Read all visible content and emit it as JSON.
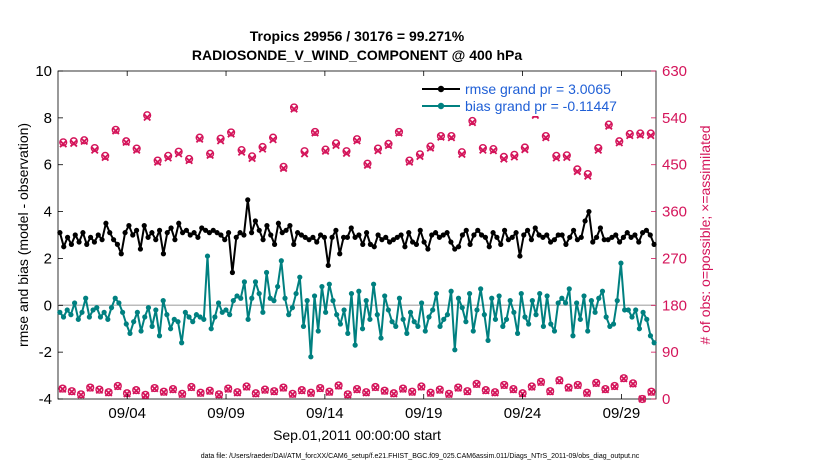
{
  "chart_data": {
    "type": "line",
    "title_line1": "Tropics 29956 / 30176 = 99.271%",
    "title_line2": "RADIOSONDE_V_WIND_COMPONENT @ 400 hPa",
    "xlabel": "Sep.01,2011 00:00:00 start",
    "ylabel_left": "rmse and bias (model - observation)",
    "ylabel_right": "# of obs: o=possible; ×=assimilated",
    "footnote": "data file: /Users/raeder/DAI/ATM_forcXX/CAM6_setup/f.e21.FHIST_BGC.f09_025.CAM6assim.011/Diags_NTrS_2011-09/obs_diag_output.nc",
    "x_range": [
      0.5,
      30.75
    ],
    "y_left_range": [
      -4,
      10
    ],
    "y_right_range": [
      0,
      630
    ],
    "x_ticks": [
      {
        "value": 4,
        "label": "09/04"
      },
      {
        "value": 9,
        "label": "09/09"
      },
      {
        "value": 14,
        "label": "09/14"
      },
      {
        "value": 19,
        "label": "09/19"
      },
      {
        "value": 24,
        "label": "09/24"
      },
      {
        "value": 29,
        "label": "09/29"
      }
    ],
    "y_left_ticks": [
      -4,
      -2,
      0,
      2,
      4,
      6,
      8,
      10
    ],
    "y_right_ticks": [
      0,
      90,
      180,
      270,
      360,
      450,
      540,
      630
    ],
    "colors": {
      "rmse": "#000000",
      "bias": "#008080",
      "obs": "#d4145a",
      "zero_line": "#bbbbbb",
      "legend_text": "#1f5fd6"
    },
    "legend_position": "top-right",
    "series": [
      {
        "name": "rmse grand pr = 3.0065",
        "axis": "left",
        "style": "line-markers",
        "color_key": "rmse",
        "values": [
          3.1,
          2.5,
          2.9,
          2.6,
          3.0,
          2.7,
          3.1,
          2.6,
          2.9,
          2.7,
          3.0,
          2.8,
          3.5,
          3.1,
          2.8,
          2.6,
          2.2,
          3.1,
          3.4,
          3.0,
          3.2,
          2.4,
          3.4,
          2.9,
          3.1,
          2.8,
          3.2,
          2.2,
          3.1,
          3.3,
          2.8,
          3.5,
          3.1,
          3.2,
          3.0,
          3.1,
          2.9,
          3.3,
          3.2,
          3.1,
          3.2,
          3.1,
          3.0,
          2.8,
          3.1,
          1.4,
          2.9,
          3.1,
          3.0,
          4.5,
          3.1,
          3.6,
          3.2,
          2.8,
          3.4,
          3.0,
          2.6,
          3.5,
          3.1,
          3.2,
          3.4,
          2.6,
          3.1,
          3.0,
          2.9,
          2.8,
          2.9,
          2.7,
          3.0,
          2.9,
          1.7,
          2.9,
          3.2,
          2.2,
          2.9,
          2.9,
          3.3,
          2.9,
          3.0,
          2.6,
          3.1,
          2.6,
          2.5,
          3.0,
          2.8,
          2.9,
          2.7,
          2.8,
          2.9,
          3.0,
          2.5,
          3.1,
          2.7,
          2.6,
          3.2,
          2.7,
          2.4,
          3.0,
          3.1,
          2.9,
          3.0,
          3.1,
          2.7,
          2.4,
          2.5,
          3.0,
          3.2,
          2.6,
          3.0,
          3.2,
          3.0,
          2.9,
          2.5,
          3.1,
          2.9,
          2.6,
          3.2,
          2.8,
          2.9,
          3.1,
          2.1,
          3.0,
          3.2,
          2.8,
          3.3,
          3.0,
          2.9,
          3.0,
          2.7,
          2.8,
          3.0,
          3.0,
          2.6,
          2.9,
          3.2,
          2.8,
          2.9,
          3.6,
          4.0,
          2.7,
          2.9,
          3.3,
          2.8,
          2.8,
          2.9,
          3.0,
          2.7,
          2.9,
          3.1,
          2.9,
          3.0,
          2.7,
          3.1,
          3.2,
          3.0,
          2.6
        ]
      },
      {
        "name": "bias grand pr = -0.11447",
        "axis": "left",
        "style": "line-markers",
        "color_key": "bias",
        "values": [
          -0.3,
          -0.5,
          -0.2,
          -0.4,
          0.1,
          -0.6,
          -0.3,
          0.3,
          -0.5,
          -0.2,
          -0.1,
          -0.5,
          -0.3,
          -0.6,
          -0.1,
          0.3,
          0.1,
          -0.3,
          -0.8,
          -1.2,
          -0.7,
          -0.3,
          -1.1,
          -0.5,
          -0.1,
          -0.9,
          -0.2,
          -1.3,
          0.2,
          -0.4,
          -1.0,
          -0.6,
          -0.7,
          -1.6,
          -0.3,
          -0.5,
          -0.7,
          -0.4,
          -0.5,
          -0.6,
          2.1,
          -1.0,
          -0.5,
          0.1,
          -0.3,
          -0.2,
          -0.4,
          0.2,
          0.4,
          0.3,
          1.0,
          -0.6,
          0.3,
          1.0,
          0.5,
          -0.3,
          1.4,
          0.3,
          0.2,
          0.8,
          1.9,
          0.3,
          -0.4,
          -0.1,
          0.5,
          1.2,
          -0.9,
          0.2,
          -2.2,
          0.4,
          -1.1,
          0.8,
          -0.3,
          0.9,
          0.2,
          -0.4,
          -0.8,
          -0.2,
          -1.2,
          0.5,
          -1.7,
          0.6,
          -1.0,
          0.2,
          -0.6,
          0.9,
          -0.4,
          -1.4,
          0.4,
          -0.2,
          -0.7,
          -0.9,
          0.3,
          -0.6,
          -1.2,
          -0.3,
          -0.7,
          -0.9,
          0.1,
          -1.1,
          -0.5,
          -0.2,
          0.5,
          -0.9,
          -0.6,
          -0.4,
          0.6,
          -1.9,
          0.3,
          -0.1,
          -0.7,
          0.5,
          -1.1,
          -0.2,
          0.7,
          -0.4,
          -1.5,
          0.3,
          -0.6,
          0.4,
          -0.9,
          -0.6,
          0.2,
          -0.3,
          -1.2,
          0.5,
          -0.5,
          -0.8,
          0.2,
          -0.4,
          0.5,
          -0.9,
          0.4,
          -0.8,
          -1.1,
          0.1,
          0.3,
          0.1,
          0.7,
          -1.3,
          0.1,
          -0.6,
          0.4,
          -1.1,
          0.2,
          -0.3,
          0.3,
          0.6,
          -0.5,
          -0.9,
          -0.8,
          0.2,
          1.8,
          -0.2,
          -0.2,
          -0.5,
          -0.2,
          -1.0,
          -0.3,
          -0.6,
          -1.3,
          -1.6
        ]
      }
    ],
    "obs_possible": [
      493,
      495,
      497,
      482,
      467,
      517,
      495,
      481,
      545,
      458,
      467,
      475,
      461,
      502,
      471,
      500,
      512,
      478,
      466,
      484,
      502,
      446,
      560,
      476,
      513,
      479,
      491,
      476,
      499,
      452,
      481,
      490,
      513,
      458,
      470,
      485,
      505,
      505,
      474,
      534,
      482,
      480,
      465,
      469,
      483,
      548,
      505,
      467,
      468,
      441,
      432,
      482,
      527,
      495,
      509,
      510,
      510
    ],
    "obs_assimilated": [
      490,
      491,
      495,
      478,
      464,
      515,
      493,
      478,
      541,
      455,
      463,
      471,
      458,
      499,
      468,
      496,
      509,
      474,
      462,
      480,
      498,
      443,
      557,
      471,
      511,
      476,
      487,
      472,
      496,
      449,
      477,
      487,
      511,
      455,
      466,
      482,
      503,
      502,
      470,
      531,
      478,
      477,
      461,
      465,
      479,
      545,
      502,
      463,
      464,
      437,
      428,
      478,
      524,
      492,
      506,
      507,
      506
    ],
    "obs_bottom_possible": [
      20,
      15,
      9,
      22,
      18,
      13,
      25,
      11,
      17,
      8,
      21,
      14,
      19,
      10,
      23,
      12,
      16,
      9,
      20,
      13,
      24,
      11,
      18,
      15,
      22,
      10,
      17,
      12,
      21,
      14,
      26,
      9,
      19,
      13,
      23,
      16,
      11,
      20,
      14,
      24,
      12,
      18,
      10,
      22,
      15,
      29,
      17,
      13,
      27,
      19,
      11,
      24,
      33,
      15,
      36,
      22,
      27,
      12,
      31,
      19,
      25,
      40,
      30,
      0,
      14
    ],
    "obs_bottom_assimilated": [
      19,
      14,
      8,
      21,
      17,
      12,
      24,
      10,
      16,
      7,
      20,
      13,
      18,
      9,
      22,
      11,
      15,
      8,
      19,
      12,
      23,
      10,
      17,
      14,
      21,
      9,
      16,
      11,
      20,
      13,
      25,
      8,
      18,
      12,
      22,
      15,
      10,
      19,
      13,
      23,
      11,
      17,
      9,
      21,
      14,
      28,
      16,
      12,
      26,
      18,
      10,
      23,
      32,
      14,
      35,
      21,
      26,
      11,
      30,
      18,
      24,
      39,
      29,
      0,
      13
    ]
  }
}
